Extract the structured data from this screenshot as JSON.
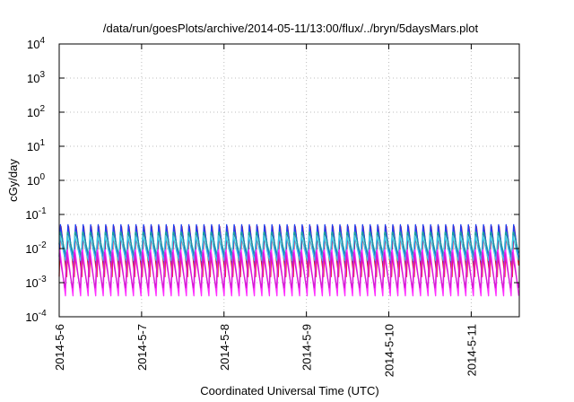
{
  "chart_data": {
    "type": "line",
    "title": "/data/run/goesPlots/archive/2014-05-11/13:00/flux/../bryn/5daysMars.plot",
    "xlabel": "Coordinated Universal Time (UTC)",
    "ylabel": "cGy/day",
    "y_scale": "log",
    "ylim": [
      0.0001,
      10000
    ],
    "y_ticks": [
      {
        "value": 0.0001,
        "base": "10",
        "exp": "-4"
      },
      {
        "value": 0.001,
        "base": "10",
        "exp": "-3"
      },
      {
        "value": 0.01,
        "base": "10",
        "exp": "-2"
      },
      {
        "value": 0.1,
        "base": "10",
        "exp": "-1"
      },
      {
        "value": 1,
        "base": "10",
        "exp": "0"
      },
      {
        "value": 10,
        "base": "10",
        "exp": "1"
      },
      {
        "value": 100,
        "base": "10",
        "exp": "2"
      },
      {
        "value": 1000,
        "base": "10",
        "exp": "3"
      },
      {
        "value": 10000,
        "base": "10",
        "exp": "4"
      }
    ],
    "xlim": [
      "2014-05-06",
      "2014-05-11 14:00"
    ],
    "x_ticks": [
      {
        "value": "2014-05-06",
        "label": "2014-5-6"
      },
      {
        "value": "2014-05-07",
        "label": "2014-5-7"
      },
      {
        "value": "2014-05-08",
        "label": "2014-5-8"
      },
      {
        "value": "2014-05-09",
        "label": "2014-5-9"
      },
      {
        "value": "2014-05-10",
        "label": "2014-5-10"
      },
      {
        "value": "2014-05-11",
        "label": "2014-5-11"
      }
    ],
    "grid": true,
    "period_hours": 2.2,
    "series": [
      {
        "color": "#e8141e",
        "peak": 0.06,
        "trough": 0.0015
      },
      {
        "color": "#1f3ff0",
        "peak": 0.055,
        "trough": 0.003
      },
      {
        "color": "#1aa0a0",
        "peak": 0.035,
        "trough": 0.006
      },
      {
        "color": "#3ec6e6",
        "peak": 0.025,
        "trough": 0.004
      },
      {
        "color": "#ff2eff",
        "peak": 0.012,
        "trough": 0.0004
      },
      {
        "color": "#d41cd4",
        "peak": 0.008,
        "trough": 0.0006
      }
    ]
  }
}
